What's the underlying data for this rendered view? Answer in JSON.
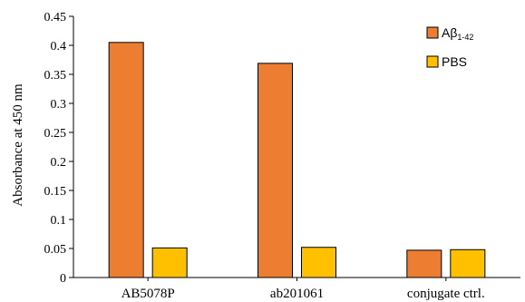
{
  "chart_data": {
    "type": "bar",
    "categories": [
      "AB5078P",
      "ab201061",
      "conjugate ctrl."
    ],
    "series": [
      {
        "name": "Aβ1-42",
        "label_main": "Aβ",
        "label_sub": "1-42",
        "color": "#ED7D31",
        "values": [
          0.405,
          0.369,
          0.047
        ]
      },
      {
        "name": "PBS",
        "label_main": "PBS",
        "label_sub": "",
        "color": "#FFC000",
        "values": [
          0.051,
          0.052,
          0.048
        ]
      }
    ],
    "ylabel": "Absorbance at 450 nm",
    "xlabel": "",
    "ylim": [
      0,
      0.45
    ],
    "yticks": [
      0,
      0.05,
      0.1,
      0.15,
      0.2,
      0.25,
      0.3,
      0.35,
      0.4,
      0.45
    ],
    "ytick_labels": [
      "0",
      "0.05",
      "0.1",
      "0.15",
      "0.2",
      "0.25",
      "0.3",
      "0.35",
      "0.4",
      "0.45"
    ],
    "grid": false,
    "legend_position": "top-right"
  }
}
